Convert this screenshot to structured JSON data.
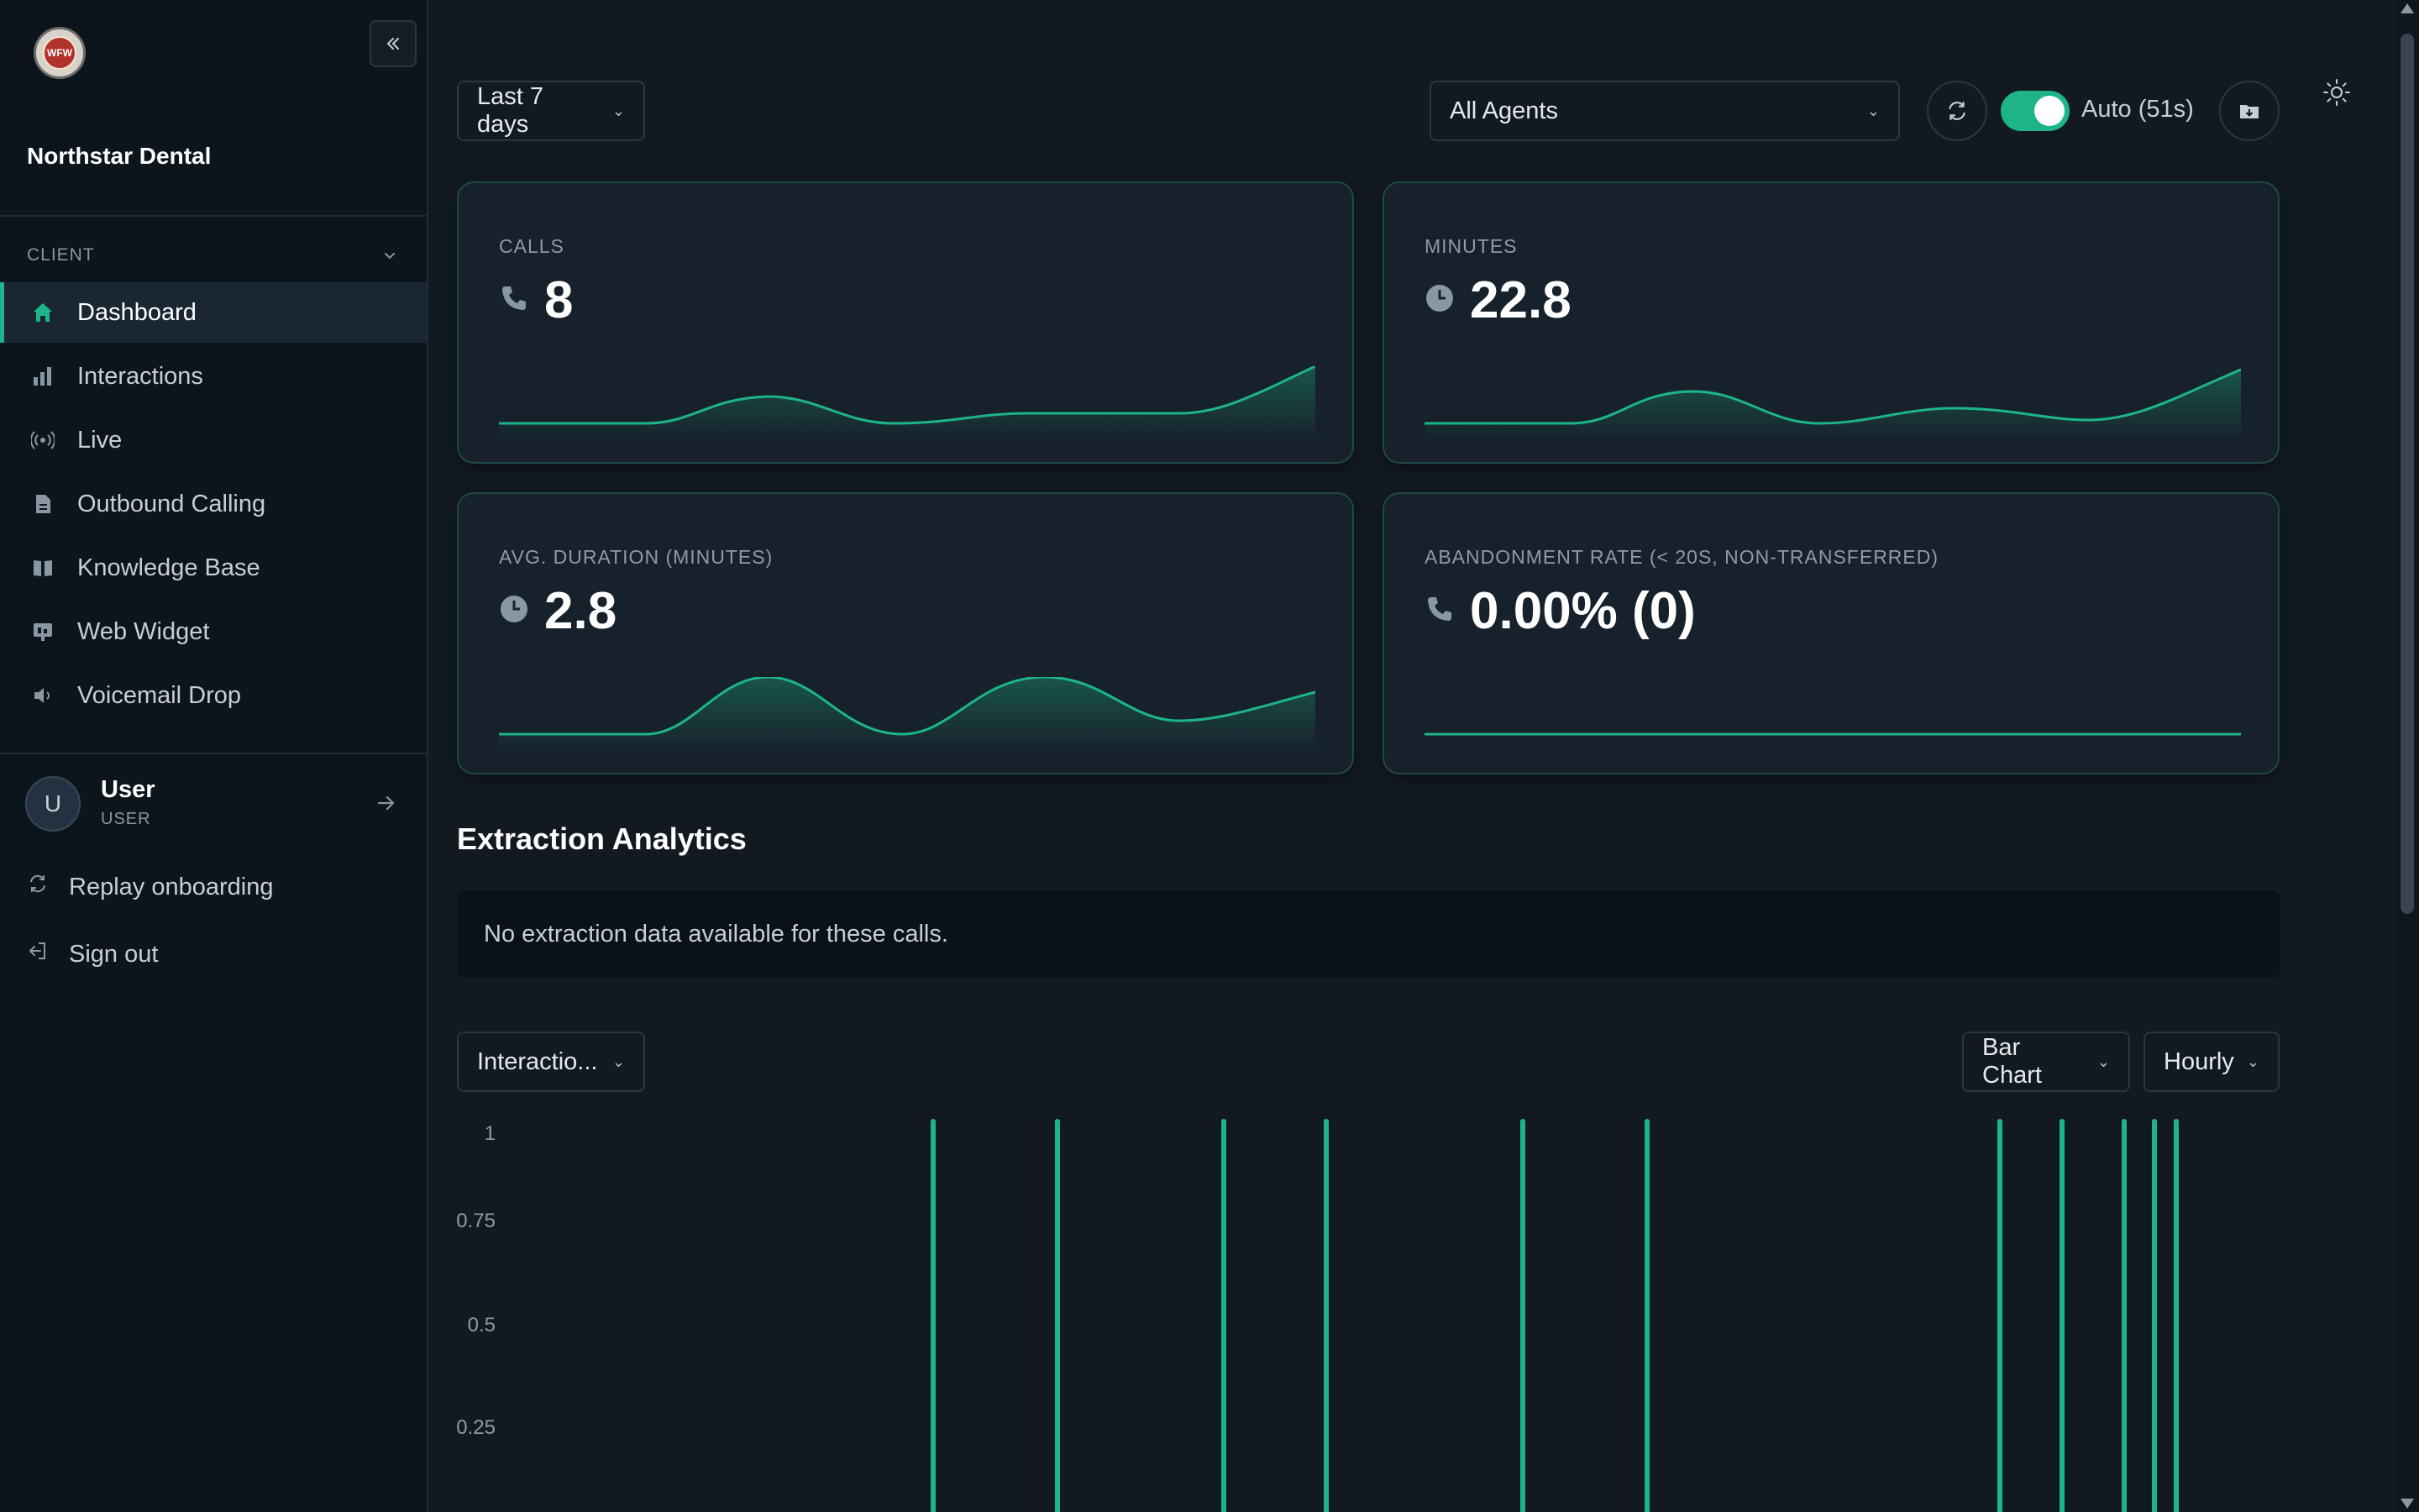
{
  "sidebar": {
    "logo_text": "WFW",
    "org_name": "Northstar Dental",
    "section_label": "CLIENT",
    "items": [
      {
        "label": "Dashboard",
        "icon": "home-icon"
      },
      {
        "label": "Interactions",
        "icon": "bar-chart-icon"
      },
      {
        "label": "Live",
        "icon": "broadcast-icon"
      },
      {
        "label": "Outbound Calling",
        "icon": "document-icon"
      },
      {
        "label": "Knowledge Base",
        "icon": "book-icon"
      },
      {
        "label": "Web Widget",
        "icon": "widget-icon"
      },
      {
        "label": "Voicemail Drop",
        "icon": "speaker-icon"
      }
    ],
    "active_item": "Dashboard",
    "user": {
      "initial": "U",
      "name": "User",
      "role": "USER"
    },
    "replay_label": "Replay onboarding",
    "signout_label": "Sign out"
  },
  "toolbar": {
    "date_range": "Last 7 days",
    "agent_filter": "All Agents",
    "auto_label": "Auto (51s)",
    "auto_enabled": true
  },
  "stats": [
    {
      "label": "CALLS",
      "value": "8",
      "icon": "phone-icon"
    },
    {
      "label": "MINUTES",
      "value": "22.8",
      "icon": "clock-icon"
    },
    {
      "label": "AVG. DURATION (MINUTES)",
      "value": "2.8",
      "icon": "clock-icon"
    },
    {
      "label": "ABANDONMENT RATE (< 20S, NON-TRANSFERRED)",
      "value": "0.00% (0)",
      "icon": "phone-icon"
    }
  ],
  "extraction": {
    "title": "Extraction Analytics",
    "empty_message": "No extraction data available for these calls."
  },
  "chart_controls": {
    "metric": "Interactio...",
    "chart_type": "Bar Chart",
    "granularity": "Hourly"
  },
  "chart_data": {
    "type": "bar",
    "yticks": [
      "1",
      "0.75",
      "0.5",
      "0.25"
    ],
    "ylim": [
      0,
      1
    ],
    "values": [
      1,
      1,
      1,
      1,
      1,
      1,
      1,
      1,
      1,
      1,
      1
    ],
    "accent": "#1db587"
  },
  "colors": {
    "accent": "#1db587",
    "background": "#121921",
    "sidebar": "#0d151c"
  }
}
